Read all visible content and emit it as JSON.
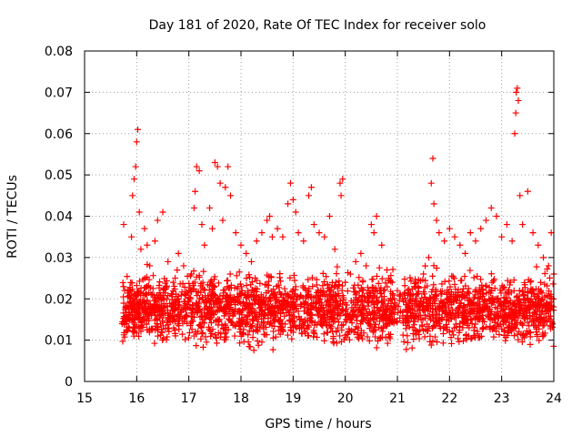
{
  "chart_data": {
    "type": "scatter",
    "title": "Day 181 of 2020, Rate Of TEC Index for receiver solo",
    "xlabel": "GPS time / hours",
    "ylabel": "ROTI / TECUs",
    "xlim": [
      15,
      24
    ],
    "ylim": [
      0,
      0.08
    ],
    "xticks": [
      15,
      16,
      17,
      18,
      19,
      20,
      21,
      22,
      23,
      24
    ],
    "xtick_labels": [
      "15",
      "16",
      "17",
      "18",
      "19",
      "20",
      "21",
      "22",
      "23",
      "24"
    ],
    "yticks": [
      0,
      0.01,
      0.02,
      0.03,
      0.04,
      0.05,
      0.06,
      0.07,
      0.08
    ],
    "ytick_labels": [
      "0",
      "0.01",
      "0.02",
      "0.03",
      "0.04",
      "0.05",
      "0.06",
      "0.07",
      "0.08"
    ],
    "grid": true,
    "marker": "plus",
    "color": "#ff0000",
    "series": [
      {
        "name": "ROTI",
        "points": [
          [
            15.75,
            0.038
          ],
          [
            15.8,
            0.014
          ],
          [
            15.85,
            0.022
          ],
          [
            15.9,
            0.035
          ],
          [
            15.92,
            0.045
          ],
          [
            15.95,
            0.049
          ],
          [
            15.98,
            0.052
          ],
          [
            16.0,
            0.058
          ],
          [
            16.02,
            0.061
          ],
          [
            16.05,
            0.041
          ],
          [
            16.08,
            0.032
          ],
          [
            16.1,
            0.018
          ],
          [
            16.15,
            0.037
          ],
          [
            16.2,
            0.033
          ],
          [
            16.25,
            0.028
          ],
          [
            16.3,
            0.021
          ],
          [
            16.35,
            0.034
          ],
          [
            16.4,
            0.039
          ],
          [
            16.5,
            0.041
          ],
          [
            16.6,
            0.029
          ],
          [
            16.7,
            0.024
          ],
          [
            16.8,
            0.031
          ],
          [
            16.9,
            0.028
          ],
          [
            17.0,
            0.022
          ],
          [
            17.05,
            0.026
          ],
          [
            17.1,
            0.042
          ],
          [
            17.12,
            0.046
          ],
          [
            17.15,
            0.052
          ],
          [
            17.2,
            0.051
          ],
          [
            17.25,
            0.038
          ],
          [
            17.3,
            0.033
          ],
          [
            17.4,
            0.042
          ],
          [
            17.45,
            0.037
          ],
          [
            17.5,
            0.053
          ],
          [
            17.55,
            0.052
          ],
          [
            17.6,
            0.048
          ],
          [
            17.65,
            0.039
          ],
          [
            17.7,
            0.047
          ],
          [
            17.75,
            0.052
          ],
          [
            17.8,
            0.045
          ],
          [
            17.9,
            0.036
          ],
          [
            18.0,
            0.033
          ],
          [
            18.1,
            0.031
          ],
          [
            18.2,
            0.029
          ],
          [
            18.3,
            0.034
          ],
          [
            18.4,
            0.036
          ],
          [
            18.5,
            0.039
          ],
          [
            18.55,
            0.04
          ],
          [
            18.6,
            0.035
          ],
          [
            18.7,
            0.037
          ],
          [
            18.8,
            0.035
          ],
          [
            18.9,
            0.043
          ],
          [
            18.95,
            0.048
          ],
          [
            19.0,
            0.044
          ],
          [
            19.05,
            0.041
          ],
          [
            19.1,
            0.036
          ],
          [
            19.2,
            0.034
          ],
          [
            19.3,
            0.045
          ],
          [
            19.35,
            0.047
          ],
          [
            19.4,
            0.038
          ],
          [
            19.5,
            0.036
          ],
          [
            19.6,
            0.035
          ],
          [
            19.7,
            0.04
          ],
          [
            19.8,
            0.032
          ],
          [
            19.9,
            0.048
          ],
          [
            19.92,
            0.045
          ],
          [
            19.95,
            0.049
          ],
          [
            20.0,
            0.024
          ],
          [
            20.1,
            0.026
          ],
          [
            20.2,
            0.029
          ],
          [
            20.3,
            0.031
          ],
          [
            20.4,
            0.028
          ],
          [
            20.5,
            0.038
          ],
          [
            20.55,
            0.036
          ],
          [
            20.6,
            0.04
          ],
          [
            20.7,
            0.033
          ],
          [
            20.8,
            0.027
          ],
          [
            20.9,
            0.024
          ],
          [
            21.0,
            0.022
          ],
          [
            21.1,
            0.02
          ],
          [
            21.2,
            0.018
          ],
          [
            21.3,
            0.021
          ],
          [
            21.4,
            0.023
          ],
          [
            21.5,
            0.026
          ],
          [
            21.6,
            0.03
          ],
          [
            21.65,
            0.048
          ],
          [
            21.68,
            0.054
          ],
          [
            21.7,
            0.043
          ],
          [
            21.75,
            0.039
          ],
          [
            21.8,
            0.036
          ],
          [
            21.9,
            0.034
          ],
          [
            22.0,
            0.037
          ],
          [
            22.1,
            0.035
          ],
          [
            22.2,
            0.033
          ],
          [
            22.3,
            0.031
          ],
          [
            22.4,
            0.036
          ],
          [
            22.5,
            0.034
          ],
          [
            22.6,
            0.037
          ],
          [
            22.7,
            0.039
          ],
          [
            22.8,
            0.042
          ],
          [
            22.9,
            0.04
          ],
          [
            23.0,
            0.035
          ],
          [
            23.1,
            0.038
          ],
          [
            23.2,
            0.034
          ],
          [
            23.25,
            0.06
          ],
          [
            23.27,
            0.065
          ],
          [
            23.28,
            0.07
          ],
          [
            23.3,
            0.071
          ],
          [
            23.32,
            0.068
          ],
          [
            23.35,
            0.045
          ],
          [
            23.4,
            0.038
          ],
          [
            23.5,
            0.046
          ],
          [
            23.6,
            0.036
          ],
          [
            23.7,
            0.033
          ],
          [
            23.8,
            0.03
          ],
          [
            23.9,
            0.028
          ],
          [
            23.95,
            0.036
          ],
          [
            24.0,
            0.026
          ]
        ]
      }
    ],
    "dense_band": {
      "note": "bulk of points drawn as a dense band between these y-bounds",
      "x_start": 15.72,
      "x_end": 24.0,
      "lower": 0.007,
      "upper": 0.028,
      "gaps": [
        [
          20.95,
          21.1
        ]
      ]
    }
  }
}
